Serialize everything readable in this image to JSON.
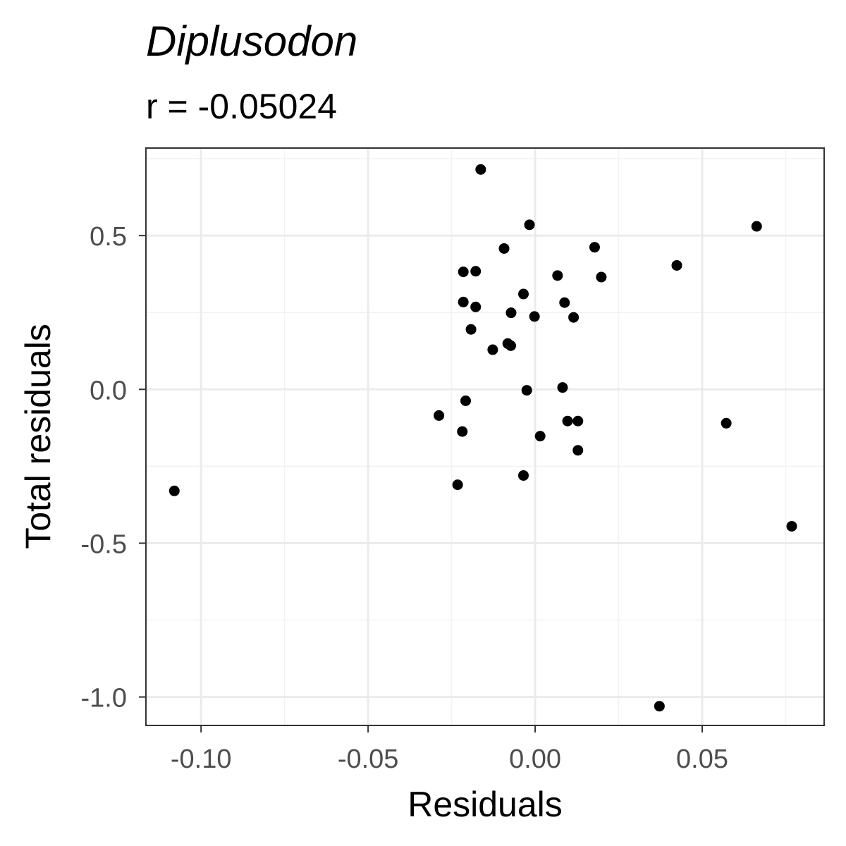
{
  "chart_data": {
    "type": "scatter",
    "title": "Diplusodon",
    "subtitle": "r = -0.05024",
    "xlabel": "Residuals",
    "ylabel": "Total residuals",
    "xlim": [
      -0.1165,
      0.0865
    ],
    "ylim": [
      -1.0925,
      0.7845
    ],
    "xticks": [
      -0.1,
      -0.05,
      0.0,
      0.05
    ],
    "xtick_labels": [
      "-0.10",
      "-0.05",
      "0.00",
      "0.05"
    ],
    "yticks": [
      -1.0,
      -0.5,
      0.0,
      0.5
    ],
    "ytick_labels": [
      "-1.0",
      "-0.5",
      "0.0",
      "0.5"
    ],
    "grid": true,
    "points": [
      {
        "x": -0.108,
        "y": -0.33
      },
      {
        "x": -0.0163,
        "y": 0.715
      },
      {
        "x": -0.0017,
        "y": 0.535
      },
      {
        "x": 0.0663,
        "y": 0.53
      },
      {
        "x": -0.0093,
        "y": 0.458
      },
      {
        "x": 0.0178,
        "y": 0.462
      },
      {
        "x": 0.0424,
        "y": 0.403
      },
      {
        "x": -0.0215,
        "y": 0.382
      },
      {
        "x": -0.0178,
        "y": 0.384
      },
      {
        "x": 0.0067,
        "y": 0.37
      },
      {
        "x": 0.0198,
        "y": 0.365
      },
      {
        "x": -0.0035,
        "y": 0.31
      },
      {
        "x": -0.0215,
        "y": 0.284
      },
      {
        "x": -0.0178,
        "y": 0.268
      },
      {
        "x": 0.0088,
        "y": 0.282
      },
      {
        "x": -0.0072,
        "y": 0.249
      },
      {
        "x": -0.0002,
        "y": 0.237
      },
      {
        "x": 0.0115,
        "y": 0.234
      },
      {
        "x": -0.0192,
        "y": 0.195
      },
      {
        "x": -0.0082,
        "y": 0.149
      },
      {
        "x": -0.0073,
        "y": 0.142
      },
      {
        "x": -0.0127,
        "y": 0.129
      },
      {
        "x": -0.0025,
        "y": -0.003
      },
      {
        "x": 0.0082,
        "y": 0.006
      },
      {
        "x": -0.0208,
        "y": -0.037
      },
      {
        "x": -0.0288,
        "y": -0.085
      },
      {
        "x": -0.0218,
        "y": -0.137
      },
      {
        "x": 0.0097,
        "y": -0.103
      },
      {
        "x": 0.0128,
        "y": -0.103
      },
      {
        "x": 0.0015,
        "y": -0.152
      },
      {
        "x": 0.0128,
        "y": -0.198
      },
      {
        "x": -0.0035,
        "y": -0.28
      },
      {
        "x": -0.0232,
        "y": -0.31
      },
      {
        "x": 0.0572,
        "y": -0.11
      },
      {
        "x": 0.0768,
        "y": -0.445
      },
      {
        "x": 0.0372,
        "y": -1.03
      }
    ]
  }
}
